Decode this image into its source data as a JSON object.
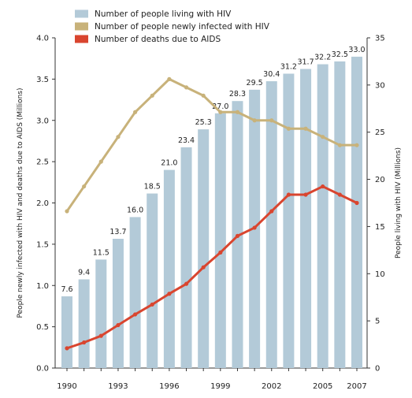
{
  "chart_data": {
    "type": "bar",
    "x": [
      1990,
      1991,
      1992,
      1993,
      1994,
      1995,
      1996,
      1997,
      1998,
      1999,
      2000,
      2001,
      2002,
      2003,
      2004,
      2005,
      2006,
      2007
    ],
    "x_tick_labels": [
      "1990",
      "1993",
      "1996",
      "1999",
      "2002",
      "2005",
      "2007"
    ],
    "left_axis": {
      "label": "People newly infected with HIV and deaths due to AIDS (Millions)",
      "range": [
        0,
        4.0
      ],
      "ticks": [
        "0.0",
        "0.5",
        "1.0",
        "1.5",
        "2.0",
        "2.5",
        "3.0",
        "3.5",
        "4.0"
      ]
    },
    "right_axis": {
      "label": "People living with HIV (Millions)",
      "range": [
        0,
        35
      ],
      "ticks": [
        "0",
        "5",
        "10",
        "15",
        "20",
        "25",
        "30",
        "35"
      ]
    },
    "legend_placement": "top-left",
    "grid": false,
    "series": [
      {
        "name": "Number of people living with HIV",
        "kind": "bar",
        "axis": "right",
        "color": "#b3cad8",
        "values": [
          7.6,
          9.4,
          11.5,
          13.7,
          16.0,
          18.5,
          21.0,
          23.4,
          25.3,
          27.0,
          28.3,
          29.5,
          30.4,
          31.2,
          31.7,
          32.2,
          32.5,
          33.0
        ],
        "labels": [
          "7.6",
          "9.4",
          "11.5",
          "13.7",
          "16.0",
          "18.5",
          "21.0",
          "23.4",
          "25.3",
          "27.0",
          "28.3",
          "29.5",
          "30.4",
          "31.2",
          "31.7",
          "32.2",
          "32.5",
          "33.0"
        ]
      },
      {
        "name": "Number of people newly infected with HIV",
        "kind": "line",
        "axis": "left",
        "color": "#c8b27a",
        "values": [
          1.9,
          2.2,
          2.5,
          2.8,
          3.1,
          3.3,
          3.5,
          3.4,
          3.3,
          3.1,
          3.1,
          3.0,
          3.0,
          2.9,
          2.9,
          2.8,
          2.7,
          2.7
        ]
      },
      {
        "name": "Number of deaths due to AIDS",
        "kind": "line",
        "axis": "left",
        "color": "#d9452f",
        "values": [
          0.24,
          0.31,
          0.39,
          0.52,
          0.65,
          0.77,
          0.9,
          1.02,
          1.22,
          1.4,
          1.6,
          1.7,
          1.9,
          2.1,
          2.1,
          2.2,
          2.1,
          2.0
        ]
      }
    ]
  }
}
